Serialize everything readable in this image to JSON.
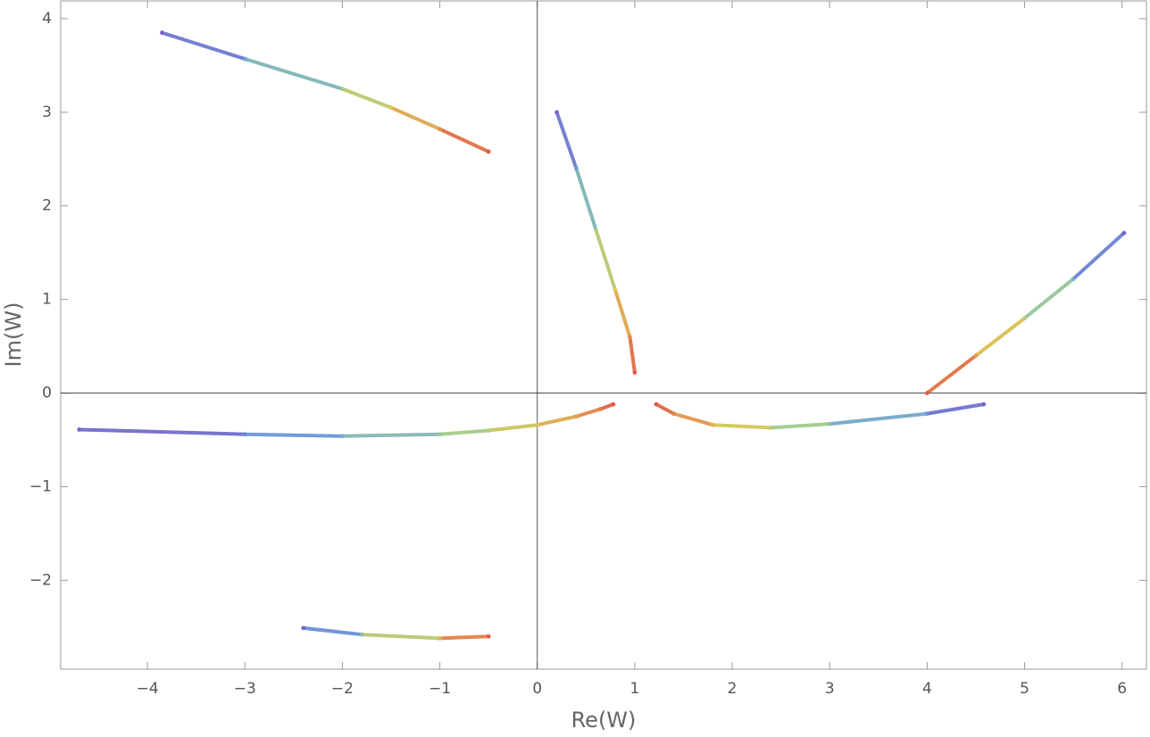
{
  "chart_data": {
    "type": "scatter",
    "x_label": "Re(W)",
    "y_label": "Im(W)",
    "xlim": [
      -4.89,
      6.25
    ],
    "ylim": [
      -2.95,
      4.19
    ],
    "xticks": [
      {
        "value": -4,
        "label": "−4"
      },
      {
        "value": -3,
        "label": "−3"
      },
      {
        "value": -2,
        "label": "−2"
      },
      {
        "value": -1,
        "label": "−1"
      },
      0,
      1,
      2,
      3,
      4,
      5,
      6
    ],
    "yticks": [
      {
        "value": -2,
        "label": "−2"
      },
      {
        "value": -1,
        "label": "−1"
      },
      0,
      1,
      2,
      3,
      4
    ],
    "zero_lines": true,
    "color_gradient": [
      "#7d5fc8",
      "#6fa0dc",
      "#9fcf96",
      "#d9c85a",
      "#e58f52",
      "#e05a4a"
    ],
    "series": [
      {
        "x": [
          -3.85,
          -3.0,
          -2.0,
          -1.5,
          -1.0,
          -0.5
        ],
        "y": [
          3.85,
          3.57,
          3.25,
          3.05,
          2.82,
          2.58
        ]
      },
      {
        "x": [
          0.2,
          0.4,
          0.6,
          0.8,
          0.95,
          1.0
        ],
        "y": [
          3.0,
          2.4,
          1.75,
          1.1,
          0.6,
          0.22
        ]
      },
      {
        "x": [
          6.02,
          5.5,
          5.0,
          4.5,
          4.0
        ],
        "y": [
          1.71,
          1.22,
          0.8,
          0.4,
          0.0
        ]
      },
      {
        "x": [
          -4.7,
          -3.0,
          -2.0,
          -1.0,
          -0.5,
          0.0,
          0.4,
          0.65,
          0.78
        ],
        "y": [
          -0.39,
          -0.44,
          -0.46,
          -0.44,
          -0.4,
          -0.34,
          -0.25,
          -0.17,
          -0.12
        ]
      },
      {
        "x": [
          4.58,
          4.0,
          3.0,
          2.4,
          1.8,
          1.4,
          1.22
        ],
        "y": [
          -0.12,
          -0.22,
          -0.33,
          -0.37,
          -0.34,
          -0.22,
          -0.12
        ]
      },
      {
        "x": [
          -2.4,
          -1.8,
          -1.0,
          -0.5
        ],
        "y": [
          -2.51,
          -2.58,
          -2.62,
          -2.6
        ]
      }
    ]
  }
}
